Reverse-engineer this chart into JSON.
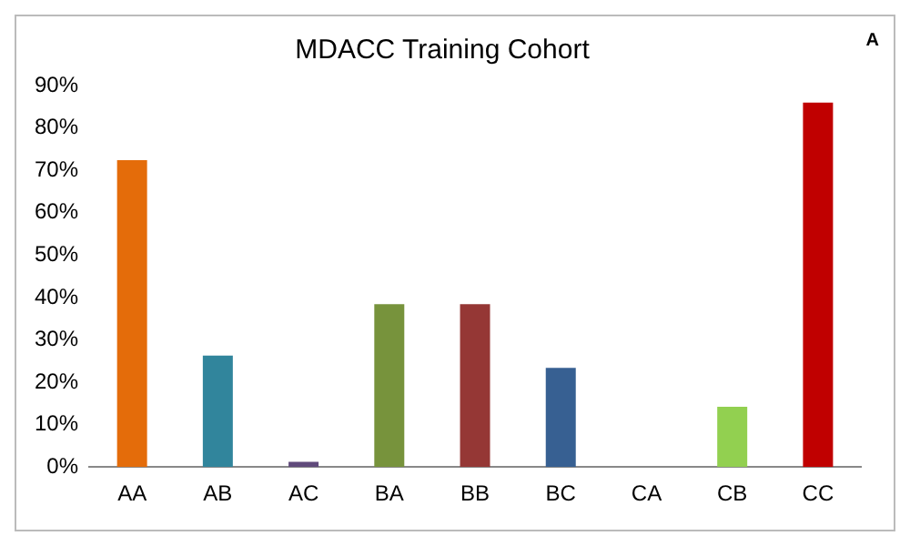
{
  "chart_data": {
    "type": "bar",
    "title": "MDACC Training Cohort",
    "annotations": [
      "A"
    ],
    "categories": [
      "AA",
      "AB",
      "AC",
      "BA",
      "BB",
      "BC",
      "CA",
      "CB",
      "CC"
    ],
    "values": [
      72.4,
      26.3,
      1.2,
      38.4,
      38.4,
      23.4,
      0,
      14.2,
      86
    ],
    "colors": [
      "#e46c0a",
      "#31859c",
      "#604a7b",
      "#77933c",
      "#953735",
      "#376092",
      "#4bacc6",
      "#92d050",
      "#c00000"
    ],
    "ylim": [
      0,
      90
    ],
    "yticks": [
      {
        "value": 0,
        "label": "0%"
      },
      {
        "value": 10,
        "label": "10%"
      },
      {
        "value": 20,
        "label": "20%"
      },
      {
        "value": 30,
        "label": "30%"
      },
      {
        "value": 40,
        "label": "40%"
      },
      {
        "value": 50,
        "label": "50%"
      },
      {
        "value": 60,
        "label": "60%"
      },
      {
        "value": 70,
        "label": "70%"
      },
      {
        "value": 80,
        "label": "80%"
      },
      {
        "value": 90,
        "label": "90%"
      }
    ],
    "grid": false,
    "legend": false
  }
}
